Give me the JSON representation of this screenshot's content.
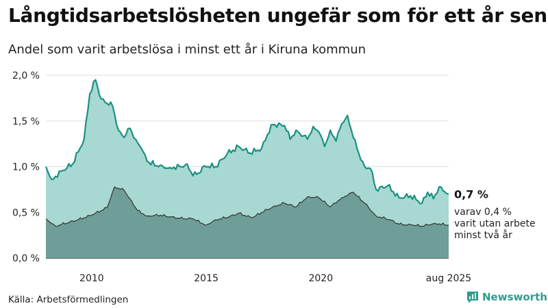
{
  "header": {
    "title": "Långtidsarbetslösheten ungefär som för ett år sen",
    "subtitle": "Andel som varit arbetslösa i minst ett år i Kiruna kommun"
  },
  "footer": {
    "source": "Källa: Arbetsförmedlingen",
    "brand": "Newsworthy"
  },
  "colors": {
    "total_line": "#1a9080",
    "total_fill": "#a8d8d2",
    "sub_line": "#333333",
    "sub_fill": "#6e9e97",
    "brand": "#2a9d8f"
  },
  "icons": {
    "brand_logo": "bar-chart-speech-bubble-icon"
  },
  "chart_data": {
    "type": "area",
    "x_start": "2008-01",
    "x_end": "2025-08",
    "x_step": "1 month",
    "ylim": [
      0,
      2.0
    ],
    "yticks": [
      0,
      0.5,
      1.0,
      1.5,
      2.0
    ],
    "ytick_labels": [
      "0,0 %",
      "0,5 %",
      "1,0 %",
      "1,5 %",
      "2,0 %"
    ],
    "xtick_positions": [
      "2010-01",
      "2015-01",
      "2020-01",
      "2025-08"
    ],
    "xtick_labels": [
      "2010",
      "2015",
      "2020",
      "aug 2025"
    ],
    "grid": true,
    "series": [
      {
        "end_label": "0,7 %",
        "knots": [
          [
            "2008-01",
            1.0
          ],
          [
            "2008-04",
            0.86
          ],
          [
            "2008-10",
            0.96
          ],
          [
            "2009-03",
            1.03
          ],
          [
            "2009-09",
            1.3
          ],
          [
            "2009-12",
            1.8
          ],
          [
            "2010-03",
            1.95
          ],
          [
            "2010-06",
            1.74
          ],
          [
            "2010-12",
            1.66
          ],
          [
            "2011-03",
            1.4
          ],
          [
            "2011-06",
            1.32
          ],
          [
            "2011-09",
            1.42
          ],
          [
            "2011-12",
            1.3
          ],
          [
            "2012-03",
            1.2
          ],
          [
            "2012-06",
            1.06
          ],
          [
            "2012-12",
            1.0
          ],
          [
            "2013-06",
            0.99
          ],
          [
            "2013-12",
            1.0
          ],
          [
            "2014-03",
            1.03
          ],
          [
            "2014-06",
            0.9
          ],
          [
            "2014-09",
            0.93
          ],
          [
            "2014-12",
            1.01
          ],
          [
            "2015-06",
            1.0
          ],
          [
            "2015-12",
            1.14
          ],
          [
            "2016-06",
            1.22
          ],
          [
            "2016-12",
            1.15
          ],
          [
            "2017-06",
            1.2
          ],
          [
            "2017-09",
            1.35
          ],
          [
            "2017-12",
            1.46
          ],
          [
            "2018-06",
            1.45
          ],
          [
            "2018-09",
            1.3
          ],
          [
            "2018-12",
            1.4
          ],
          [
            "2019-06",
            1.3
          ],
          [
            "2019-09",
            1.44
          ],
          [
            "2019-12",
            1.38
          ],
          [
            "2020-03",
            1.22
          ],
          [
            "2020-06",
            1.4
          ],
          [
            "2020-09",
            1.28
          ],
          [
            "2020-12",
            1.47
          ],
          [
            "2021-03",
            1.56
          ],
          [
            "2021-06",
            1.32
          ],
          [
            "2021-09",
            1.14
          ],
          [
            "2021-12",
            1.0
          ],
          [
            "2022-03",
            0.98
          ],
          [
            "2022-06",
            0.75
          ],
          [
            "2022-12",
            0.79
          ],
          [
            "2023-06",
            0.66
          ],
          [
            "2023-12",
            0.68
          ],
          [
            "2024-06",
            0.6
          ],
          [
            "2024-09",
            0.72
          ],
          [
            "2024-12",
            0.65
          ],
          [
            "2025-03",
            0.78
          ],
          [
            "2025-08",
            0.7
          ]
        ]
      },
      {
        "end_label": "varav 0,4 %\nvarit utan arbete\nminst två år",
        "knots": [
          [
            "2008-01",
            0.43
          ],
          [
            "2008-06",
            0.35
          ],
          [
            "2009-06",
            0.42
          ],
          [
            "2010-01",
            0.47
          ],
          [
            "2010-09",
            0.55
          ],
          [
            "2011-01",
            0.78
          ],
          [
            "2011-06",
            0.74
          ],
          [
            "2011-09",
            0.65
          ],
          [
            "2012-01",
            0.52
          ],
          [
            "2012-06",
            0.46
          ],
          [
            "2013-01",
            0.47
          ],
          [
            "2013-06",
            0.45
          ],
          [
            "2014-01",
            0.43
          ],
          [
            "2014-06",
            0.43
          ],
          [
            "2015-01",
            0.36
          ],
          [
            "2015-06",
            0.42
          ],
          [
            "2016-01",
            0.45
          ],
          [
            "2016-06",
            0.49
          ],
          [
            "2017-01",
            0.44
          ],
          [
            "2017-06",
            0.5
          ],
          [
            "2018-01",
            0.57
          ],
          [
            "2018-06",
            0.6
          ],
          [
            "2018-12",
            0.56
          ],
          [
            "2019-06",
            0.67
          ],
          [
            "2019-12",
            0.66
          ],
          [
            "2020-06",
            0.56
          ],
          [
            "2020-12",
            0.66
          ],
          [
            "2021-06",
            0.72
          ],
          [
            "2021-12",
            0.6
          ],
          [
            "2022-06",
            0.46
          ],
          [
            "2023-01",
            0.42
          ],
          [
            "2023-06",
            0.37
          ],
          [
            "2024-01",
            0.36
          ],
          [
            "2024-06",
            0.35
          ],
          [
            "2025-01",
            0.38
          ],
          [
            "2025-08",
            0.36
          ]
        ]
      }
    ]
  }
}
